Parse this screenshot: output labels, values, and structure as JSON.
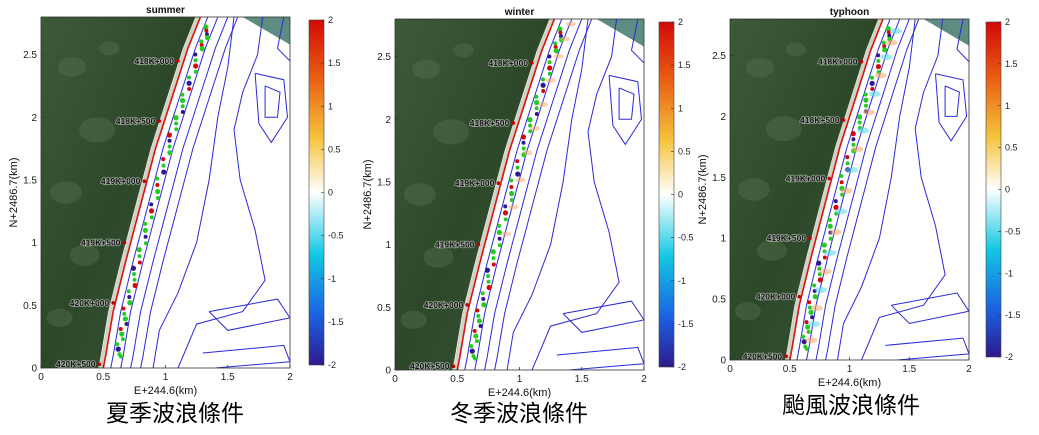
{
  "chart_data": [
    {
      "type": "heatmap",
      "title": "summer",
      "caption": "夏季波浪條件",
      "xlabel": "E+244.6(km)",
      "ylabel": "N+2486.7(km)",
      "xlim": [
        0,
        2
      ],
      "ylim": [
        0,
        2.8
      ],
      "xticks": [
        "0",
        "0.5",
        "1",
        "1.5",
        "2"
      ],
      "yticks": [
        "0",
        "0.5",
        "1",
        "1.5",
        "2",
        "2.5"
      ],
      "colorbar": {
        "min": -2,
        "max": 2,
        "ticks": [
          "2",
          "1.5",
          "1",
          "0.5",
          "0",
          "-0.5",
          "-1",
          "-1.5",
          "-2"
        ]
      },
      "stations": [
        {
          "label": "418K+000",
          "x": 1.1,
          "y": 2.45
        },
        {
          "label": "418K+500",
          "x": 0.95,
          "y": 1.97
        },
        {
          "label": "419K+000",
          "x": 0.83,
          "y": 1.49
        },
        {
          "label": "419K+500",
          "x": 0.67,
          "y": 1.0
        },
        {
          "label": "420K+000",
          "x": 0.58,
          "y": 0.52
        },
        {
          "label": "420K+500",
          "x": 0.47,
          "y": 0.03
        }
      ]
    },
    {
      "type": "heatmap",
      "title": "winter",
      "caption": "冬季波浪條件",
      "xlabel": "E+244.6(km)",
      "ylabel": "N+2486.7(km)",
      "xlim": [
        0,
        2
      ],
      "ylim": [
        0,
        2.8
      ],
      "xticks": [
        "0",
        "0.5",
        "1",
        "1.5",
        "2"
      ],
      "yticks": [
        "0",
        "0.5",
        "1",
        "1.5",
        "2",
        "2.5"
      ],
      "colorbar": {
        "min": -2,
        "max": 2,
        "ticks": [
          "2",
          "1.5",
          "1",
          "0.5",
          "0",
          "-0.5",
          "-1",
          "-1.5",
          "-2"
        ]
      },
      "stations": [
        {
          "label": "418K+000",
          "x": 1.1,
          "y": 2.45
        },
        {
          "label": "418K+500",
          "x": 0.95,
          "y": 1.97
        },
        {
          "label": "419K+000",
          "x": 0.83,
          "y": 1.49
        },
        {
          "label": "419K+500",
          "x": 0.67,
          "y": 1.0
        },
        {
          "label": "420K+000",
          "x": 0.58,
          "y": 0.52
        },
        {
          "label": "420K+500",
          "x": 0.47,
          "y": 0.03
        }
      ]
    },
    {
      "type": "heatmap",
      "title": "typhoon",
      "caption": "颱風波浪條件",
      "xlabel": "E+244.6(km)",
      "ylabel": "N+2486.7(km)",
      "xlim": [
        0,
        2
      ],
      "ylim": [
        0,
        2.8
      ],
      "xticks": [
        "0",
        "0.5",
        "1",
        "1.5",
        "2"
      ],
      "yticks": [
        "0",
        "0.5",
        "1",
        "1.5",
        "2",
        "2.5"
      ],
      "colorbar": {
        "min": -2,
        "max": 2,
        "ticks": [
          "2",
          "1.5",
          "1",
          "0.5",
          "0",
          "-0.5",
          "-1",
          "-1.5",
          "-2"
        ]
      },
      "stations": [
        {
          "label": "418K+000",
          "x": 1.1,
          "y": 2.45
        },
        {
          "label": "418K+500",
          "x": 0.95,
          "y": 1.97
        },
        {
          "label": "419K+000",
          "x": 0.83,
          "y": 1.49
        },
        {
          "label": "419K+500",
          "x": 0.67,
          "y": 1.0
        },
        {
          "label": "420K+000",
          "x": 0.58,
          "y": 0.52
        },
        {
          "label": "420K+500",
          "x": 0.47,
          "y": 0.03
        }
      ]
    }
  ],
  "colors": {
    "land": "#2f4a2c",
    "land_light": "#5c7a57",
    "sea_corner": "#5d8c82",
    "contour": "#2a2ad8",
    "shoreline": "#d81414",
    "accretion": "#22cc22",
    "colormap": [
      "#2d1a8c",
      "#1b5fe0",
      "#12c7e3",
      "#ffffff",
      "#f5c23a",
      "#e85a12",
      "#d40808"
    ]
  }
}
